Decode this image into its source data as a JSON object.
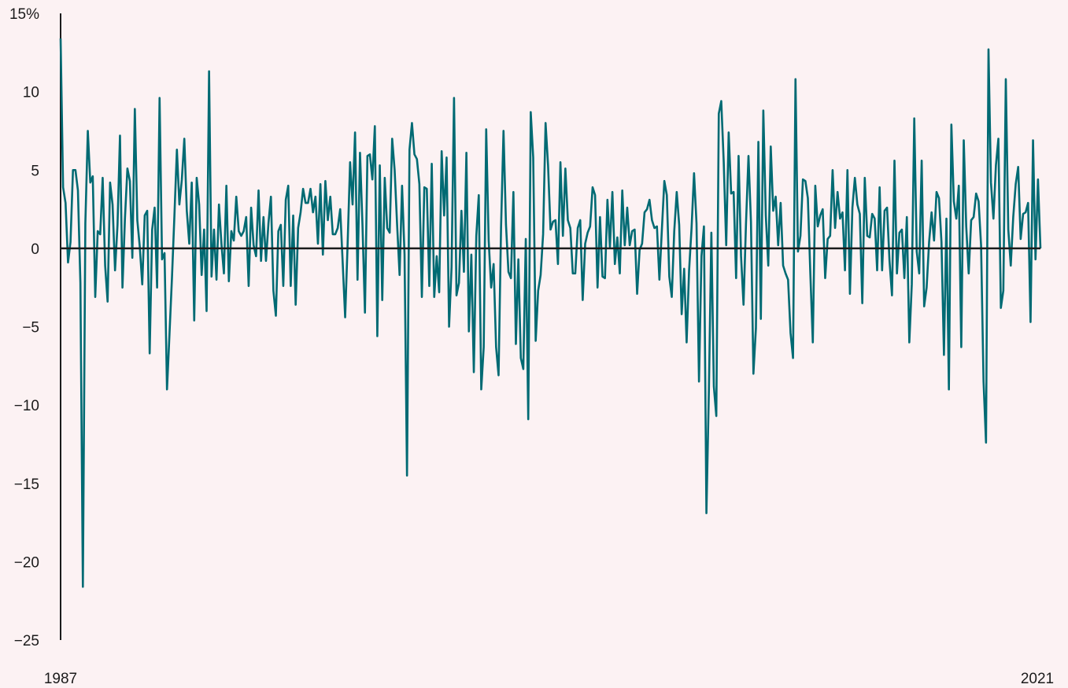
{
  "chart_data": {
    "type": "line",
    "title": "",
    "xlabel": "",
    "ylabel": "",
    "x_start_label": "1987",
    "x_end_label": "2021",
    "ylim": [
      -25,
      15
    ],
    "y_ticks": [
      "15%",
      "10",
      "5",
      "0",
      "−5",
      "−10",
      "−15",
      "−20",
      "−25"
    ],
    "y_tick_values": [
      15,
      10,
      5,
      0,
      -5,
      -10,
      -15,
      -20,
      -25
    ],
    "grid": false,
    "colors": {
      "line": "#006a73",
      "axis": "#1b1b1b",
      "background": "#fcf2f3"
    },
    "series": [
      {
        "values": [
          13.4,
          3.9,
          2.9,
          -0.9,
          0.4,
          5.0,
          5.0,
          3.7,
          -2.2,
          -21.6,
          1.6,
          7.5,
          4.2,
          4.6,
          -3.1,
          1.1,
          0.9,
          4.5,
          -1.1,
          -3.4,
          4.2,
          2.8,
          -1.4,
          1.5,
          7.2,
          -2.5,
          1.9,
          5.1,
          4.3,
          -0.6,
          8.9,
          1.8,
          0.1,
          -2.3,
          2.1,
          2.4,
          -6.7,
          1.2,
          2.6,
          -2.5,
          9.6,
          -0.7,
          -0.3,
          -9.0,
          -5.5,
          -1.9,
          2.1,
          6.3,
          2.8,
          4.4,
          7.0,
          2.4,
          0.3,
          4.2,
          -4.6,
          4.5,
          2.8,
          -1.7,
          1.2,
          -4.0,
          11.3,
          -1.8,
          1.2,
          -2.0,
          2.8,
          0.3,
          -1.6,
          4.0,
          -2.1,
          1.1,
          0.5,
          3.3,
          1.1,
          0.8,
          1.1,
          2.0,
          -2.4,
          2.6,
          0.2,
          -0.5,
          3.7,
          -0.8,
          2.0,
          -0.8,
          1.6,
          3.3,
          -2.7,
          -4.3,
          1.1,
          1.5,
          -2.4,
          3.1,
          4.0,
          -2.4,
          2.1,
          -3.6,
          1.3,
          2.3,
          3.8,
          2.9,
          2.9,
          3.8,
          2.3,
          3.3,
          0.3,
          4.1,
          -0.4,
          4.3,
          1.8,
          3.3,
          0.9,
          0.9,
          1.3,
          2.5,
          -0.9,
          -4.4,
          0.3,
          5.5,
          2.8,
          7.4,
          -2.0,
          6.1,
          1.5,
          -4.1,
          5.9,
          6.0,
          4.4,
          7.8,
          -5.6,
          5.3,
          -3.3,
          4.5,
          1.3,
          1.0,
          7.0,
          5.0,
          1.5,
          -1.7,
          4.0,
          -0.4,
          -14.5,
          6.3,
          8.0,
          6.0,
          5.7,
          4.1,
          -3.1,
          3.9,
          3.8,
          -2.4,
          5.4,
          -3.1,
          -0.5,
          -2.8,
          6.2,
          2.1,
          5.8,
          -5.0,
          -1.2,
          9.6,
          -3.0,
          -2.2,
          2.4,
          -1.5,
          6.1,
          -5.3,
          -0.4,
          -7.9,
          0.8,
          3.4,
          -9.0,
          -6.3,
          7.6,
          0.5,
          -2.5,
          -1.0,
          -6.3,
          -8.1,
          1.3,
          7.5,
          1.5,
          -1.5,
          -1.9,
          3.6,
          -6.1,
          -0.7,
          -7.0,
          -7.7,
          0.6,
          -10.9,
          8.7,
          5.8,
          -5.9,
          -2.7,
          -1.7,
          0.9,
          8.0,
          5.3,
          1.2,
          1.7,
          1.8,
          -1.0,
          5.5,
          0.8,
          5.1,
          1.8,
          1.3,
          -1.6,
          -1.6,
          1.3,
          1.8,
          -3.3,
          0.3,
          1.0,
          1.4,
          3.9,
          3.4,
          -2.5,
          2.0,
          -1.8,
          -1.9,
          3.1,
          0.1,
          3.6,
          -1.0,
          0.7,
          -1.6,
          3.7,
          0.2,
          2.6,
          0.2,
          1.1,
          1.2,
          -2.9,
          -0.1,
          0.3,
          2.3,
          2.5,
          3.1,
          1.8,
          1.3,
          1.4,
          -2.0,
          1.2,
          4.3,
          3.4,
          -1.8,
          -3.1,
          1.1,
          3.6,
          1.5,
          -4.2,
          -1.3,
          -6.0,
          -1.4,
          1.3,
          4.8,
          1.6,
          -8.5,
          -0.5,
          1.4,
          -16.9,
          -9.1,
          1.0,
          -8.8,
          -10.7,
          8.6,
          9.4,
          5.5,
          0.2,
          7.4,
          3.5,
          3.6,
          -1.9,
          5.9,
          -0.5,
          -3.6,
          1.6,
          5.9,
          1.7,
          -8.0,
          -5.1,
          6.8,
          -4.5,
          8.8,
          2.1,
          -1.1,
          6.5,
          2.4,
          3.3,
          0.2,
          2.9,
          -1.1,
          -1.6,
          -2.0,
          -5.4,
          -7.0,
          10.8,
          -0.2,
          0.8,
          4.4,
          4.3,
          3.2,
          -1.6,
          -6.0,
          4.0,
          1.4,
          2.1,
          2.5,
          -1.9,
          0.6,
          0.8,
          5.0,
          1.3,
          3.6,
          1.9,
          2.3,
          -1.4,
          5.0,
          -2.9,
          2.6,
          4.5,
          2.8,
          2.2,
          -3.5,
          4.5,
          0.8,
          0.7,
          2.2,
          1.9,
          -1.4,
          3.9,
          -1.4,
          2.4,
          2.6,
          -0.8,
          -3.0,
          5.6,
          -1.6,
          1.0,
          1.2,
          -1.9,
          2.0,
          -6.0,
          -2.3,
          8.3,
          -0.2,
          -1.6,
          5.6,
          -3.7,
          -2.5,
          0.4,
          2.3,
          0.5,
          3.6,
          3.2,
          0.4,
          -6.8,
          1.9,
          -9.0,
          7.9,
          3.0,
          1.9,
          4.0,
          -6.3,
          6.9,
          1.4,
          -1.6,
          1.8,
          2.0,
          3.5,
          3.0,
          0.2,
          -8.5,
          -12.4,
          12.7,
          4.2,
          1.9,
          5.3,
          7.0,
          -3.8,
          -2.7,
          10.8,
          1.2,
          -1.1,
          2.0,
          4.1,
          5.2,
          0.6,
          2.2,
          2.3,
          2.9,
          -4.7,
          6.9,
          -0.7,
          4.4,
          0.0
        ]
      }
    ]
  }
}
